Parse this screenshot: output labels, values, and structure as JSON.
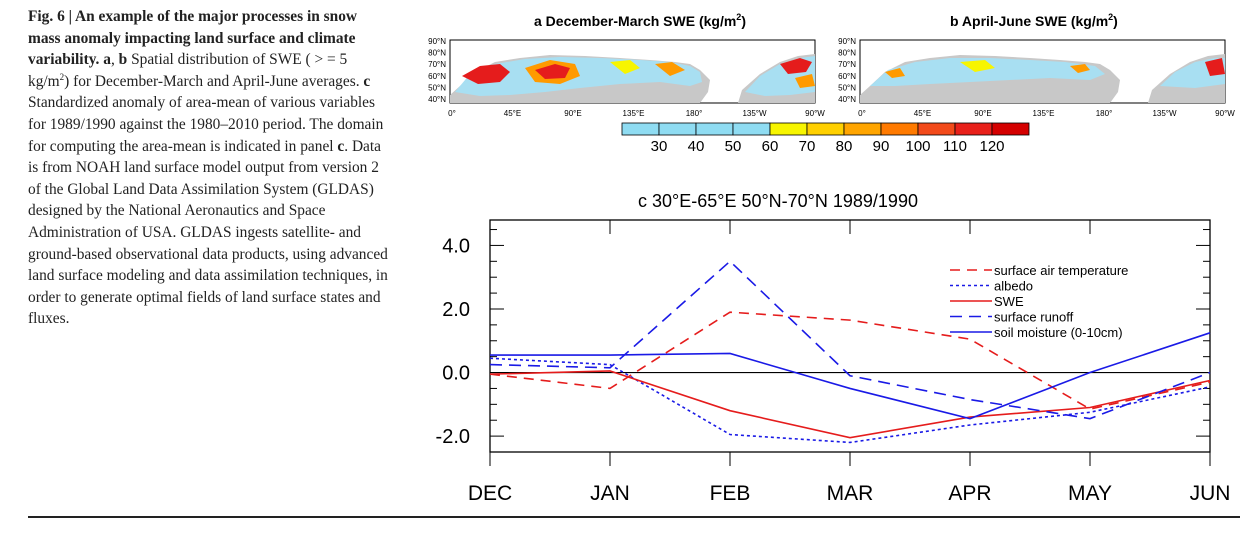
{
  "caption": {
    "fig_label": "Fig. 6 | An example of the major processes in snow mass anomaly impacting land surface and climate variability.",
    "letter_a": "a",
    "sep1": ", ",
    "letter_b": "b",
    "part1_pre": " Spatial distribution of SWE ( > = 5 kg/m",
    "part1_sup": "2",
    "part1_post": ") for December-March and April-June averages. ",
    "letter_c": "c",
    "part2": " Standardized anomaly of area-mean of various variables for 1989/1990 against the 1980–2010 period. The domain for computing the area-mean is indicated in panel ",
    "letter_c2": "c",
    "part3": ". Data is from NOAH land surface model output from version 2 of the Global Land Data Assimilation System (GLDAS) designed by the National Aeronautics and Space Administration of USA. GLDAS ingests satellite- and ground-based observational data products, using advanced land surface modeling and data assimilation techniques, in order to generate optimal fields of land surface states and fluxes."
  },
  "maps": {
    "a_title": "a  December-March SWE (kg/m",
    "b_title": "b  April-June SWE (kg/m",
    "title_sup": "2",
    "title_close": ")",
    "lat_labels": [
      "90°N",
      "80°N",
      "70°N",
      "60°N",
      "50°N",
      "40°N"
    ],
    "lon_labels": [
      "0°",
      "45°E",
      "90°E",
      "135°E",
      "180°",
      "135°W",
      "90°W"
    ],
    "colorbar_labels": [
      "30",
      "40",
      "50",
      "60",
      "70",
      "80",
      "90",
      "100",
      "110",
      "120"
    ],
    "colorbar_colors": [
      "#8fdcf2",
      "#8fdcf2",
      "#8fdcf2",
      "#8fdcf2",
      "#f7f500",
      "#ffd000",
      "#ffa500",
      "#ff7a00",
      "#f24a1a",
      "#e8201a",
      "#d40000"
    ],
    "colors": {
      "snow_light": "#a8dff2",
      "land": "#c8c8c8",
      "yellow": "#f7f500",
      "orange": "#ff9a00",
      "red": "#e51c1c"
    }
  },
  "chart_data": {
    "type": "line",
    "title": "c  30°E-65°E 50°N-70°N 1989/1990",
    "categories": [
      "DEC",
      "JAN",
      "FEB",
      "MAR",
      "APR",
      "MAY",
      "JUN"
    ],
    "ylim": [
      -2.5,
      4.0
    ],
    "yticks": [
      "4.0",
      "2.0",
      "0.0",
      "-2.0"
    ],
    "ytick_values": [
      4,
      2,
      0,
      -2
    ],
    "series": [
      {
        "name": "surface air temperature",
        "color": "#e51c1c",
        "dash": "10,7",
        "values": [
          -0.05,
          -0.5,
          1.9,
          1.65,
          1.05,
          -1.15,
          -0.3
        ]
      },
      {
        "name": "albedo",
        "color": "#1a1ae6",
        "dash": "3,3",
        "values": [
          0.45,
          0.25,
          -1.95,
          -2.2,
          -1.65,
          -1.25,
          -0.45
        ]
      },
      {
        "name": "SWE",
        "color": "#e51c1c",
        "dash": "",
        "values": [
          -0.05,
          0.05,
          -1.2,
          -2.05,
          -1.4,
          -1.1,
          -0.25
        ]
      },
      {
        "name": "surface runoff",
        "color": "#1a1ae6",
        "dash": "12,7",
        "values": [
          0.25,
          0.15,
          3.5,
          -0.1,
          -0.85,
          -1.45,
          0.0
        ]
      },
      {
        "name": "soil moisture (0-10cm)",
        "color": "#1a1ae6",
        "dash": "",
        "values": [
          0.55,
          0.55,
          0.6,
          -0.5,
          -1.45,
          0.0,
          1.25
        ]
      }
    ]
  }
}
